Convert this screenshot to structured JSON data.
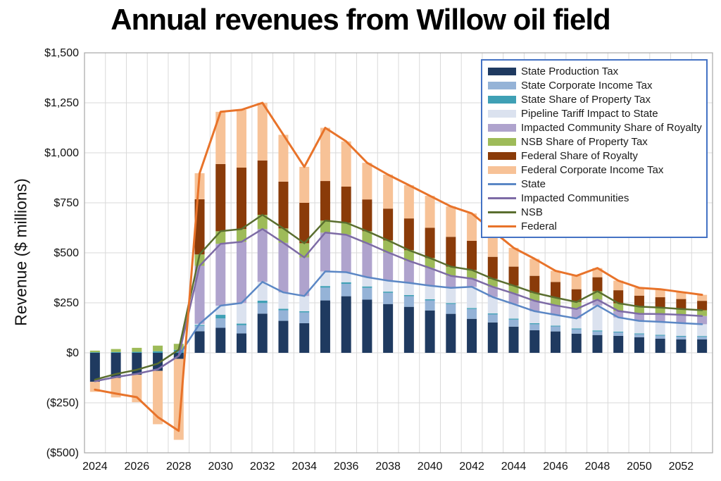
{
  "title": "Annual revenues from Willow oil field",
  "y_axis": {
    "label": "Revenue ($ millions)",
    "ticks": [
      {
        "v": 1500,
        "label": "$1,500"
      },
      {
        "v": 1250,
        "label": "$1,250"
      },
      {
        "v": 1000,
        "label": "$1,000"
      },
      {
        "v": 750,
        "label": "$750"
      },
      {
        "v": 500,
        "label": "$500"
      },
      {
        "v": 250,
        "label": "$250"
      },
      {
        "v": 0,
        "label": "$0"
      },
      {
        "v": -250,
        "label": "($250)"
      },
      {
        "v": -500,
        "label": "($500)"
      }
    ]
  },
  "x_axis": {
    "ticks": [
      {
        "year": 2024,
        "label": "2024"
      },
      {
        "year": 2026,
        "label": "2026"
      },
      {
        "year": 2028,
        "label": "2028"
      },
      {
        "year": 2030,
        "label": "2030"
      },
      {
        "year": 2032,
        "label": "2032"
      },
      {
        "year": 2034,
        "label": "2034"
      },
      {
        "year": 2036,
        "label": "2036"
      },
      {
        "year": 2038,
        "label": "2038"
      },
      {
        "year": 2040,
        "label": "2040"
      },
      {
        "year": 2042,
        "label": "2042"
      },
      {
        "year": 2044,
        "label": "2044"
      },
      {
        "year": 2046,
        "label": "2046"
      },
      {
        "year": 2048,
        "label": "2048"
      },
      {
        "year": 2050,
        "label": "2050"
      },
      {
        "year": 2052,
        "label": "2052"
      }
    ]
  },
  "colors": {
    "grid": "#d9d9d9",
    "plot_border": "#a6a6a6",
    "legend_border": "#4472C4"
  },
  "chart_data": {
    "type": "bar",
    "stacked": true,
    "title": "Annual revenues from Willow oil field",
    "xlabel": "",
    "ylabel": "Revenue ($ millions)",
    "ylim": [
      -500,
      1500
    ],
    "grid": true,
    "legend_position": "top-right",
    "x": [
      2024,
      2025,
      2026,
      2027,
      2028,
      2029,
      2030,
      2031,
      2032,
      2033,
      2034,
      2035,
      2036,
      2037,
      2038,
      2039,
      2040,
      2041,
      2042,
      2043,
      2044,
      2045,
      2046,
      2047,
      2048,
      2049,
      2050,
      2051,
      2052,
      2053
    ],
    "bar_series": [
      {
        "name": "State Production Tax",
        "color": "#1F3A60",
        "values": [
          -145,
          -125,
          -110,
          -90,
          -30,
          108,
          125,
          97,
          196,
          160,
          148,
          262,
          283,
          266,
          244,
          230,
          212,
          195,
          170,
          152,
          131,
          113,
          107,
          96,
          89,
          85,
          78,
          71,
          67,
          67
        ]
      },
      {
        "name": "State Corporate Income Tax",
        "color": "#95B3D7",
        "values": [
          0,
          0,
          0,
          0,
          0,
          27,
          47,
          41,
          53,
          53,
          54,
          64,
          62,
          59,
          56,
          53,
          50,
          49,
          49,
          40,
          35,
          30,
          25,
          22,
          18,
          17,
          15,
          15,
          14,
          13
        ]
      },
      {
        "name": "State Share of Property Tax",
        "color": "#3FA0B5",
        "values": [
          3,
          4,
          5,
          8,
          15,
          5,
          18,
          8,
          12,
          7,
          6,
          8,
          8,
          7,
          6,
          6,
          6,
          5,
          5,
          5,
          5,
          5,
          4,
          4,
          5,
          4,
          4,
          4,
          4,
          4
        ]
      },
      {
        "name": "Pipeline Tariff Impact to State",
        "color": "#DBE2EF",
        "values": [
          0,
          0,
          0,
          0,
          0,
          5,
          46,
          103,
          94,
          82,
          76,
          73,
          50,
          46,
          55,
          61,
          68,
          76,
          106,
          82,
          73,
          60,
          54,
          50,
          125,
          71,
          63,
          65,
          64,
          59
        ]
      },
      {
        "name": "Impacted Community Share of Royalty",
        "color": "#AFA3CD",
        "values": [
          0,
          0,
          0,
          0,
          0,
          290,
          309,
          306,
          264,
          248,
          193,
          194,
          187,
          170,
          141,
          110,
          88,
          60,
          41,
          51,
          53,
          52,
          47,
          47,
          29,
          32,
          35,
          39,
          41,
          41
        ]
      },
      {
        "name": "NSB Share of Property Tax",
        "color": "#9EBB59",
        "values": [
          8,
          15,
          20,
          28,
          30,
          57,
          63,
          64,
          71,
          72,
          71,
          60,
          60,
          60,
          60,
          53,
          50,
          46,
          43,
          40,
          39,
          40,
          39,
          35,
          42,
          39,
          36,
          32,
          29,
          29
        ]
      },
      {
        "name": "Federal Share of Royalty",
        "color": "#8A3B09",
        "values": [
          0,
          0,
          0,
          0,
          0,
          276,
          336,
          307,
          272,
          234,
          202,
          198,
          181,
          159,
          159,
          159,
          151,
          149,
          146,
          110,
          95,
          85,
          78,
          64,
          70,
          65,
          55,
          52,
          50,
          47
        ]
      },
      {
        "name": "Federal Corporate Income Tax",
        "color": "#F7C297",
        "values": [
          -50,
          -98,
          -137,
          -267,
          -405,
          130,
          261,
          289,
          288,
          234,
          180,
          266,
          226,
          183,
          170,
          166,
          160,
          152,
          137,
          130,
          94,
          85,
          56,
          67,
          46,
          48,
          39,
          40,
          35,
          30
        ]
      }
    ],
    "line_series": [
      {
        "name": "State",
        "color": "#5B87C5",
        "values": [
          -142,
          -121,
          -105,
          -82,
          -15,
          145,
          236,
          249,
          355,
          302,
          284,
          407,
          403,
          378,
          361,
          350,
          336,
          325,
          330,
          279,
          244,
          208,
          190,
          172,
          237,
          177,
          160,
          155,
          149,
          143
        ]
      },
      {
        "name": "Impacted Communities",
        "color": "#7D6BA5",
        "values": [
          -142,
          -121,
          -105,
          -82,
          -15,
          435,
          545,
          555,
          619,
          550,
          477,
          601,
          590,
          548,
          502,
          460,
          424,
          385,
          371,
          330,
          297,
          260,
          237,
          219,
          266,
          209,
          195,
          194,
          190,
          184
        ]
      },
      {
        "name": "NSB",
        "color": "#5A6E2F",
        "values": [
          -134,
          -106,
          -85,
          -54,
          15,
          492,
          608,
          619,
          690,
          622,
          548,
          661,
          650,
          608,
          562,
          513,
          474,
          431,
          414,
          370,
          336,
          300,
          276,
          254,
          308,
          248,
          231,
          226,
          219,
          213
        ]
      },
      {
        "name": "Federal",
        "color": "#E8732A",
        "values": [
          -184,
          -204,
          -222,
          -321,
          -390,
          898,
          1205,
          1215,
          1250,
          1090,
          930,
          1125,
          1057,
          950,
          891,
          838,
          785,
          732,
          697,
          610,
          525,
          470,
          410,
          385,
          424,
          361,
          325,
          318,
          304,
          290
        ]
      }
    ]
  }
}
